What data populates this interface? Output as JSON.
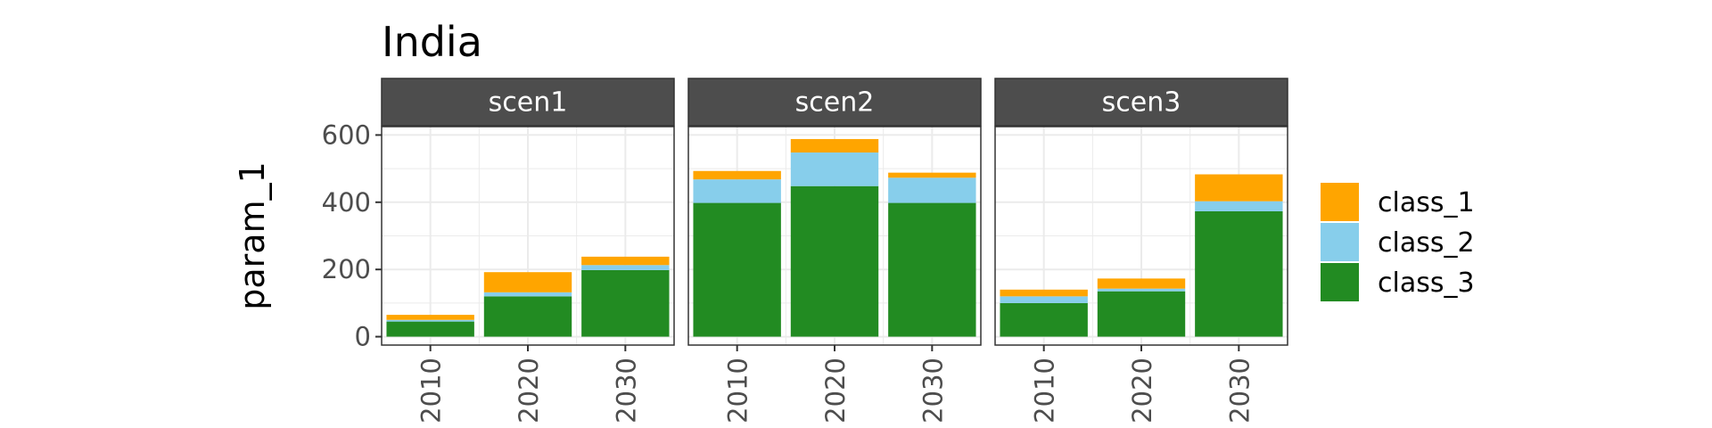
{
  "chart_data": {
    "type": "bar",
    "stacked": true,
    "title": "India",
    "xlabel": "",
    "ylabel": "param_1",
    "ylim": [
      -25,
      625
    ],
    "yticks": [
      0,
      200,
      400,
      600
    ],
    "categories": [
      "2010",
      "2020",
      "2030"
    ],
    "grid": true,
    "legend_position": "right",
    "series_order": [
      "class_3",
      "class_2",
      "class_1"
    ],
    "legend": [
      "class_1",
      "class_2",
      "class_3"
    ],
    "colors": {
      "class_1": "#FFA500",
      "class_2": "#87CEEB",
      "class_3": "#228B22"
    },
    "panels": [
      {
        "name": "scen1",
        "series": [
          {
            "name": "class_1",
            "values": [
              15,
              60,
              25
            ]
          },
          {
            "name": "class_2",
            "values": [
              5,
              12,
              15
            ]
          },
          {
            "name": "class_3",
            "values": [
              45,
              120,
              198
            ]
          }
        ]
      },
      {
        "name": "scen2",
        "series": [
          {
            "name": "class_1",
            "values": [
              25,
              40,
              15
            ]
          },
          {
            "name": "class_2",
            "values": [
              70,
              100,
              75
            ]
          },
          {
            "name": "class_3",
            "values": [
              398,
              448,
              398
            ]
          }
        ]
      },
      {
        "name": "scen3",
        "series": [
          {
            "name": "class_1",
            "values": [
              20,
              30,
              80
            ]
          },
          {
            "name": "class_2",
            "values": [
              20,
              8,
              30
            ]
          },
          {
            "name": "class_3",
            "values": [
              100,
              135,
              373
            ]
          }
        ]
      }
    ]
  }
}
